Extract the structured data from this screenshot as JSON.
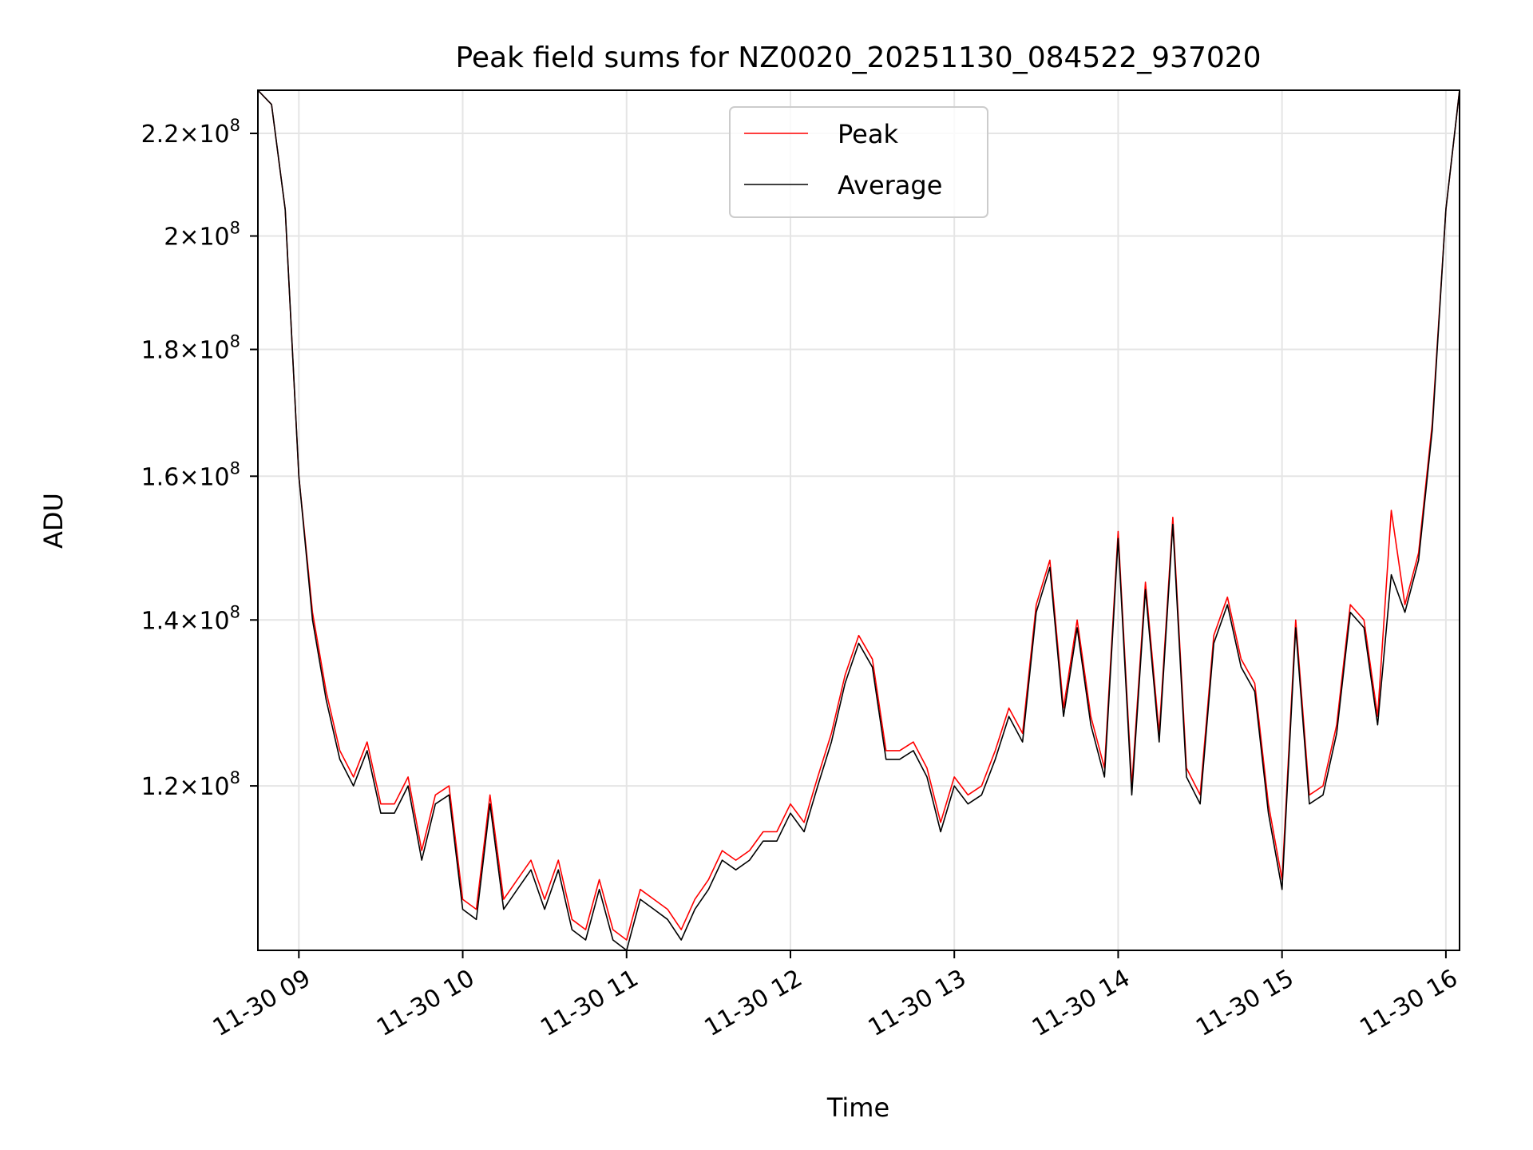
{
  "chart_data": {
    "type": "line",
    "title": "Peak field sums for NZ0020_20251130_084522_937020",
    "xlabel": "Time",
    "ylabel": "ADU",
    "y_scale": "log",
    "grid": true,
    "legend_position": "top-center",
    "x_range": [
      "2025-11-30 08:45",
      "2025-11-30 16:05"
    ],
    "y_range": [
      103000000,
      229000000
    ],
    "x_ticks": [
      {
        "value": "2025-11-30 09:00",
        "label": "11-30 09"
      },
      {
        "value": "2025-11-30 10:00",
        "label": "11-30 10"
      },
      {
        "value": "2025-11-30 11:00",
        "label": "11-30 11"
      },
      {
        "value": "2025-11-30 12:00",
        "label": "11-30 12"
      },
      {
        "value": "2025-11-30 13:00",
        "label": "11-30 13"
      },
      {
        "value": "2025-11-30 14:00",
        "label": "11-30 14"
      },
      {
        "value": "2025-11-30 15:00",
        "label": "11-30 15"
      },
      {
        "value": "2025-11-30 16:00",
        "label": "11-30 16"
      }
    ],
    "y_ticks": [
      {
        "value": 120000000,
        "mantissa": "1.2",
        "exponent": "8"
      },
      {
        "value": 140000000,
        "mantissa": "1.4",
        "exponent": "8"
      },
      {
        "value": 160000000,
        "mantissa": "1.6",
        "exponent": "8"
      },
      {
        "value": 180000000,
        "mantissa": "1.8",
        "exponent": "8"
      },
      {
        "value": 200000000,
        "mantissa": "2",
        "exponent": "8"
      },
      {
        "value": 220000000,
        "mantissa": "2.2",
        "exponent": "8"
      }
    ],
    "series": [
      {
        "name": "Peak",
        "color": "#ff0000",
        "x": [
          "2025-11-30 08:45",
          "2025-11-30 08:50",
          "2025-11-30 08:55",
          "2025-11-30 09:00",
          "2025-11-30 09:05",
          "2025-11-30 09:10",
          "2025-11-30 09:15",
          "2025-11-30 09:20",
          "2025-11-30 09:25",
          "2025-11-30 09:30",
          "2025-11-30 09:35",
          "2025-11-30 09:40",
          "2025-11-30 09:45",
          "2025-11-30 09:50",
          "2025-11-30 09:55",
          "2025-11-30 10:00",
          "2025-11-30 10:05",
          "2025-11-30 10:10",
          "2025-11-30 10:15",
          "2025-11-30 10:20",
          "2025-11-30 10:25",
          "2025-11-30 10:30",
          "2025-11-30 10:35",
          "2025-11-30 10:40",
          "2025-11-30 10:45",
          "2025-11-30 10:50",
          "2025-11-30 10:55",
          "2025-11-30 11:00",
          "2025-11-30 11:05",
          "2025-11-30 11:10",
          "2025-11-30 11:15",
          "2025-11-30 11:20",
          "2025-11-30 11:25",
          "2025-11-30 11:30",
          "2025-11-30 11:35",
          "2025-11-30 11:40",
          "2025-11-30 11:45",
          "2025-11-30 11:50",
          "2025-11-30 11:55",
          "2025-11-30 12:00",
          "2025-11-30 12:05",
          "2025-11-30 12:10",
          "2025-11-30 12:15",
          "2025-11-30 12:20",
          "2025-11-30 12:25",
          "2025-11-30 12:30",
          "2025-11-30 12:35",
          "2025-11-30 12:40",
          "2025-11-30 12:45",
          "2025-11-30 12:50",
          "2025-11-30 12:55",
          "2025-11-30 13:00",
          "2025-11-30 13:05",
          "2025-11-30 13:10",
          "2025-11-30 13:15",
          "2025-11-30 13:20",
          "2025-11-30 13:25",
          "2025-11-30 13:30",
          "2025-11-30 13:35",
          "2025-11-30 13:40",
          "2025-11-30 13:45",
          "2025-11-30 13:50",
          "2025-11-30 13:55",
          "2025-11-30 14:00",
          "2025-11-30 14:05",
          "2025-11-30 14:10",
          "2025-11-30 14:15",
          "2025-11-30 14:20",
          "2025-11-30 14:25",
          "2025-11-30 14:30",
          "2025-11-30 14:35",
          "2025-11-30 14:40",
          "2025-11-30 14:45",
          "2025-11-30 14:50",
          "2025-11-30 14:55",
          "2025-11-30 15:00",
          "2025-11-30 15:05",
          "2025-11-30 15:10",
          "2025-11-30 15:15",
          "2025-11-30 15:20",
          "2025-11-30 15:25",
          "2025-11-30 15:30",
          "2025-11-30 15:35",
          "2025-11-30 15:40",
          "2025-11-30 15:45",
          "2025-11-30 15:50",
          "2025-11-30 15:55",
          "2025-11-30 16:00",
          "2025-11-30 16:05"
        ],
        "values": [
          229000000,
          226000000,
          205000000,
          160000000,
          141000000,
          131000000,
          124000000,
          121000000,
          125000000,
          118000000,
          118000000,
          121000000,
          113000000,
          119000000,
          120000000,
          108000000,
          107000000,
          119000000,
          108000000,
          110000000,
          112000000,
          108000000,
          112000000,
          106000000,
          105000000,
          110000000,
          105000000,
          104000000,
          109000000,
          108000000,
          107000000,
          105000000,
          108000000,
          110000000,
          113000000,
          112000000,
          113000000,
          115000000,
          115000000,
          118000000,
          116000000,
          121000000,
          126000000,
          133000000,
          138000000,
          135000000,
          124000000,
          124000000,
          125000000,
          122000000,
          116000000,
          121000000,
          119000000,
          120000000,
          124000000,
          129000000,
          126000000,
          142000000,
          148000000,
          129000000,
          140000000,
          128000000,
          122000000,
          152000000,
          120000000,
          145000000,
          126000000,
          154000000,
          122000000,
          119000000,
          138000000,
          143000000,
          135000000,
          132000000,
          118000000,
          110000000,
          140000000,
          119000000,
          120000000,
          127000000,
          142000000,
          140000000,
          128000000,
          155000000,
          142000000,
          149000000,
          168000000,
          205000000,
          229000000
        ]
      },
      {
        "name": "Average",
        "color": "#000000",
        "x": [
          "2025-11-30 08:45",
          "2025-11-30 08:50",
          "2025-11-30 08:55",
          "2025-11-30 09:00",
          "2025-11-30 09:05",
          "2025-11-30 09:10",
          "2025-11-30 09:15",
          "2025-11-30 09:20",
          "2025-11-30 09:25",
          "2025-11-30 09:30",
          "2025-11-30 09:35",
          "2025-11-30 09:40",
          "2025-11-30 09:45",
          "2025-11-30 09:50",
          "2025-11-30 09:55",
          "2025-11-30 10:00",
          "2025-11-30 10:05",
          "2025-11-30 10:10",
          "2025-11-30 10:15",
          "2025-11-30 10:20",
          "2025-11-30 10:25",
          "2025-11-30 10:30",
          "2025-11-30 10:35",
          "2025-11-30 10:40",
          "2025-11-30 10:45",
          "2025-11-30 10:50",
          "2025-11-30 10:55",
          "2025-11-30 11:00",
          "2025-11-30 11:05",
          "2025-11-30 11:10",
          "2025-11-30 11:15",
          "2025-11-30 11:20",
          "2025-11-30 11:25",
          "2025-11-30 11:30",
          "2025-11-30 11:35",
          "2025-11-30 11:40",
          "2025-11-30 11:45",
          "2025-11-30 11:50",
          "2025-11-30 11:55",
          "2025-11-30 12:00",
          "2025-11-30 12:05",
          "2025-11-30 12:10",
          "2025-11-30 12:15",
          "2025-11-30 12:20",
          "2025-11-30 12:25",
          "2025-11-30 12:30",
          "2025-11-30 12:35",
          "2025-11-30 12:40",
          "2025-11-30 12:45",
          "2025-11-30 12:50",
          "2025-11-30 12:55",
          "2025-11-30 13:00",
          "2025-11-30 13:05",
          "2025-11-30 13:10",
          "2025-11-30 13:15",
          "2025-11-30 13:20",
          "2025-11-30 13:25",
          "2025-11-30 13:30",
          "2025-11-30 13:35",
          "2025-11-30 13:40",
          "2025-11-30 13:45",
          "2025-11-30 13:50",
          "2025-11-30 13:55",
          "2025-11-30 14:00",
          "2025-11-30 14:05",
          "2025-11-30 14:10",
          "2025-11-30 14:15",
          "2025-11-30 14:20",
          "2025-11-30 14:25",
          "2025-11-30 14:30",
          "2025-11-30 14:35",
          "2025-11-30 14:40",
          "2025-11-30 14:45",
          "2025-11-30 14:50",
          "2025-11-30 14:55",
          "2025-11-30 15:00",
          "2025-11-30 15:05",
          "2025-11-30 15:10",
          "2025-11-30 15:15",
          "2025-11-30 15:20",
          "2025-11-30 15:25",
          "2025-11-30 15:30",
          "2025-11-30 15:35",
          "2025-11-30 15:40",
          "2025-11-30 15:45",
          "2025-11-30 15:50",
          "2025-11-30 15:55",
          "2025-11-30 16:00",
          "2025-11-30 16:05"
        ],
        "values": [
          229000000,
          226000000,
          205000000,
          160000000,
          140000000,
          130000000,
          123000000,
          120000000,
          124000000,
          117000000,
          117000000,
          120000000,
          112000000,
          118000000,
          119000000,
          107000000,
          106000000,
          118000000,
          107000000,
          109000000,
          111000000,
          107000000,
          111000000,
          105000000,
          104000000,
          109000000,
          104000000,
          103000000,
          108000000,
          107000000,
          106000000,
          104000000,
          107000000,
          109000000,
          112000000,
          111000000,
          112000000,
          114000000,
          114000000,
          117000000,
          115000000,
          120000000,
          125000000,
          132000000,
          137000000,
          134000000,
          123000000,
          123000000,
          124000000,
          121000000,
          115000000,
          120000000,
          118000000,
          119000000,
          123000000,
          128000000,
          125000000,
          141000000,
          147000000,
          128000000,
          139000000,
          127000000,
          121000000,
          151000000,
          119000000,
          144000000,
          125000000,
          153000000,
          121000000,
          118000000,
          137000000,
          142000000,
          134000000,
          131000000,
          117000000,
          109000000,
          139000000,
          118000000,
          119000000,
          126000000,
          141000000,
          139000000,
          127000000,
          146000000,
          141000000,
          148000000,
          167000000,
          205000000,
          229000000
        ]
      }
    ]
  }
}
